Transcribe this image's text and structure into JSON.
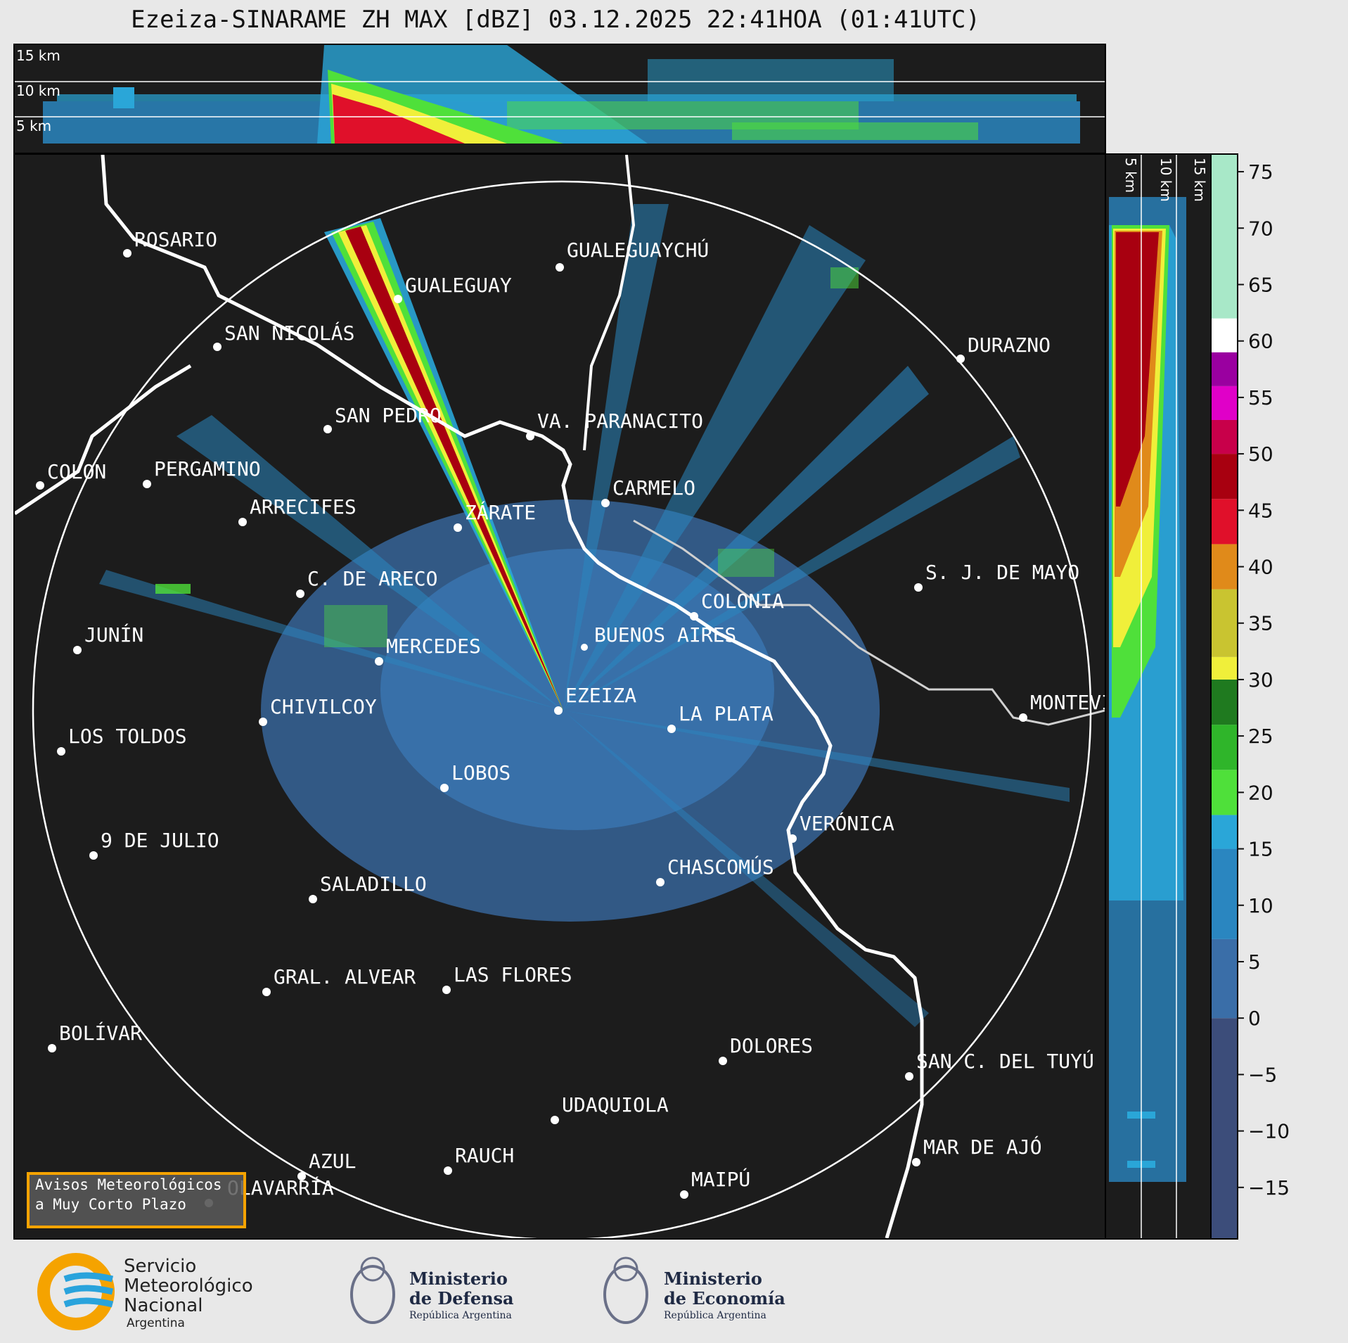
{
  "title": "Ezeiza-SINARAME ZH MAX [dBZ] 03.12.2025 22:41HOA (01:41UTC)",
  "altitude_labels": {
    "top": [
      "15 km",
      "10 km",
      "5 km"
    ],
    "side": [
      "5 km",
      "10 km",
      "15 km"
    ]
  },
  "cities": [
    {
      "name": "ROSARIO"
    },
    {
      "name": "GUALEGUAYCHÚ"
    },
    {
      "name": "GUALEGUAY"
    },
    {
      "name": "SAN NICOLÁS"
    },
    {
      "name": "DURAZNO"
    },
    {
      "name": "SAN PEDRO"
    },
    {
      "name": "VA. PARANACITO"
    },
    {
      "name": "COLON"
    },
    {
      "name": "PERGAMINO"
    },
    {
      "name": "CARMELO"
    },
    {
      "name": "ARRECIFES"
    },
    {
      "name": "ZÁRATE"
    },
    {
      "name": "S. J. DE MAYO"
    },
    {
      "name": "C. DE ARECO"
    },
    {
      "name": "COLONIA"
    },
    {
      "name": "JUNÍN"
    },
    {
      "name": "BUENOS AIRES"
    },
    {
      "name": "MERCEDES"
    },
    {
      "name": "EZEIZA"
    },
    {
      "name": "MONTEVIDEO"
    },
    {
      "name": "CHIVILCOY"
    },
    {
      "name": "LA PLATA"
    },
    {
      "name": "LOS TOLDOS"
    },
    {
      "name": "LOBOS"
    },
    {
      "name": "VERÓNICA"
    },
    {
      "name": "9 DE JULIO"
    },
    {
      "name": "CHASCOMÚS"
    },
    {
      "name": "SALADILLO"
    },
    {
      "name": "GRAL. ALVEAR"
    },
    {
      "name": "LAS FLORES"
    },
    {
      "name": "BOLÍVAR"
    },
    {
      "name": "DOLORES"
    },
    {
      "name": "SAN C. DEL TUYÚ"
    },
    {
      "name": "UDAQUIOLA"
    },
    {
      "name": "MAR DE AJÓ"
    },
    {
      "name": "AZUL"
    },
    {
      "name": "RAUCH"
    },
    {
      "name": "OLAVARRÍA"
    },
    {
      "name": "MAIPÚ"
    }
  ],
  "colorbar": {
    "unit": "dBZ",
    "min": -19.5,
    "max": 76.5,
    "ticks": [
      "75",
      "70",
      "65",
      "60",
      "55",
      "50",
      "45",
      "40",
      "35",
      "30",
      "25",
      "20",
      "15",
      "10",
      "5",
      "0",
      "−5",
      "−10",
      "−15"
    ],
    "tick_values": [
      75,
      70,
      65,
      60,
      55,
      50,
      45,
      40,
      35,
      30,
      25,
      20,
      15,
      10,
      5,
      0,
      -5,
      -10,
      -15
    ],
    "bands": [
      {
        "from": -19.5,
        "to": 0,
        "color": "#3c4d7a"
      },
      {
        "from": 0,
        "to": 7,
        "color": "#3a6ea8"
      },
      {
        "from": 7,
        "to": 15,
        "color": "#2a86c0"
      },
      {
        "from": 15,
        "to": 18,
        "color": "#2aa6d8"
      },
      {
        "from": 18,
        "to": 22,
        "color": "#4fe03a"
      },
      {
        "from": 22,
        "to": 26,
        "color": "#2fb52a"
      },
      {
        "from": 26,
        "to": 30,
        "color": "#1f7a1f"
      },
      {
        "from": 30,
        "to": 32,
        "color": "#f0ef3a"
      },
      {
        "from": 32,
        "to": 38,
        "color": "#c9c430"
      },
      {
        "from": 38,
        "to": 42,
        "color": "#e08a1a"
      },
      {
        "from": 42,
        "to": 46,
        "color": "#e0102a"
      },
      {
        "from": 46,
        "to": 50,
        "color": "#a80010"
      },
      {
        "from": 50,
        "to": 53,
        "color": "#c8004a"
      },
      {
        "from": 53,
        "to": 56,
        "color": "#e000c8"
      },
      {
        "from": 56,
        "to": 59,
        "color": "#9a00a0"
      },
      {
        "from": 59,
        "to": 62,
        "color": "#ffffff"
      },
      {
        "from": 62,
        "to": 76.5,
        "color": "#a8e8c8"
      }
    ]
  },
  "aviso": {
    "line1": "Avisos Meteorológicos",
    "line2": "a Muy Corto Plazo"
  },
  "footer": {
    "smn": [
      "Servicio",
      "Meteorológico",
      "Nacional"
    ],
    "smn_country": "Argentina",
    "defensa": [
      "Ministerio",
      "de Defensa"
    ],
    "defensa_sub": "República Argentina",
    "economia": [
      "Ministerio",
      "de Economía"
    ],
    "economia_sub": "República Argentina"
  }
}
